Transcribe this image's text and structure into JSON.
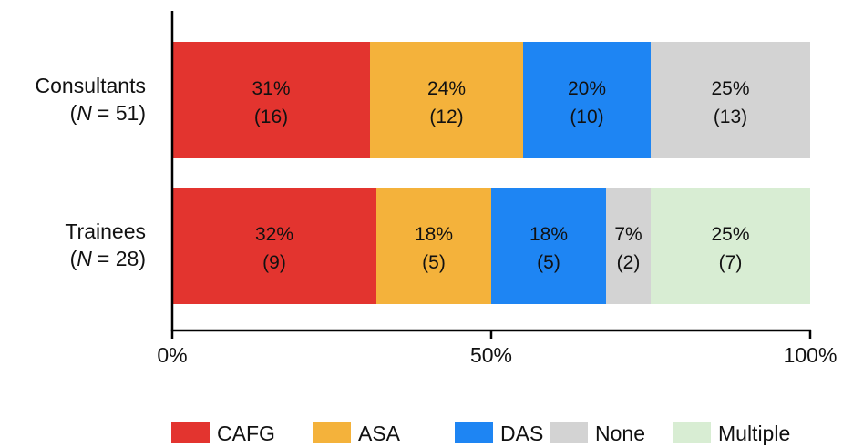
{
  "chart_data": {
    "type": "bar",
    "orientation": "horizontal",
    "stacked": true,
    "xlim": [
      0,
      100
    ],
    "x_ticks": [
      "0%",
      "50%",
      "100%"
    ],
    "grid": false,
    "legend_position": "bottom",
    "categories": [
      {
        "name": "Consultants",
        "n_prefix": "(",
        "n_symbol": "N",
        "n_value": "= 51)"
      },
      {
        "name": "Trainees",
        "n_prefix": "(",
        "n_symbol": "N",
        "n_value": "= 28)"
      }
    ],
    "series": [
      {
        "name": "CAFG",
        "color": "#e3342f"
      },
      {
        "name": "ASA",
        "color": "#f4b23b"
      },
      {
        "name": "DAS",
        "color": "#1e85f3"
      },
      {
        "name": "None",
        "color": "#d3d3d3"
      },
      {
        "name": "Multiple",
        "color": "#d8edd3"
      }
    ],
    "data": [
      {
        "category": "Consultants",
        "segments": [
          {
            "series": "CAFG",
            "value": 31,
            "percent_label": "31%",
            "count_label": "(16)"
          },
          {
            "series": "ASA",
            "value": 24,
            "percent_label": "24%",
            "count_label": "(12)"
          },
          {
            "series": "DAS",
            "value": 20,
            "percent_label": "20%",
            "count_label": "(10)"
          },
          {
            "series": "None",
            "value": 25,
            "percent_label": "25%",
            "count_label": "(13)"
          }
        ]
      },
      {
        "category": "Trainees",
        "segments": [
          {
            "series": "CAFG",
            "value": 32,
            "percent_label": "32%",
            "count_label": "(9)"
          },
          {
            "series": "ASA",
            "value": 18,
            "percent_label": "18%",
            "count_label": "(5)"
          },
          {
            "series": "DAS",
            "value": 18,
            "percent_label": "18%",
            "count_label": "(5)"
          },
          {
            "series": "None",
            "value": 7,
            "percent_label": "7%",
            "count_label": "(2)"
          },
          {
            "series": "Multiple",
            "value": 25,
            "percent_label": "25%",
            "count_label": "(7)"
          }
        ]
      }
    ]
  }
}
